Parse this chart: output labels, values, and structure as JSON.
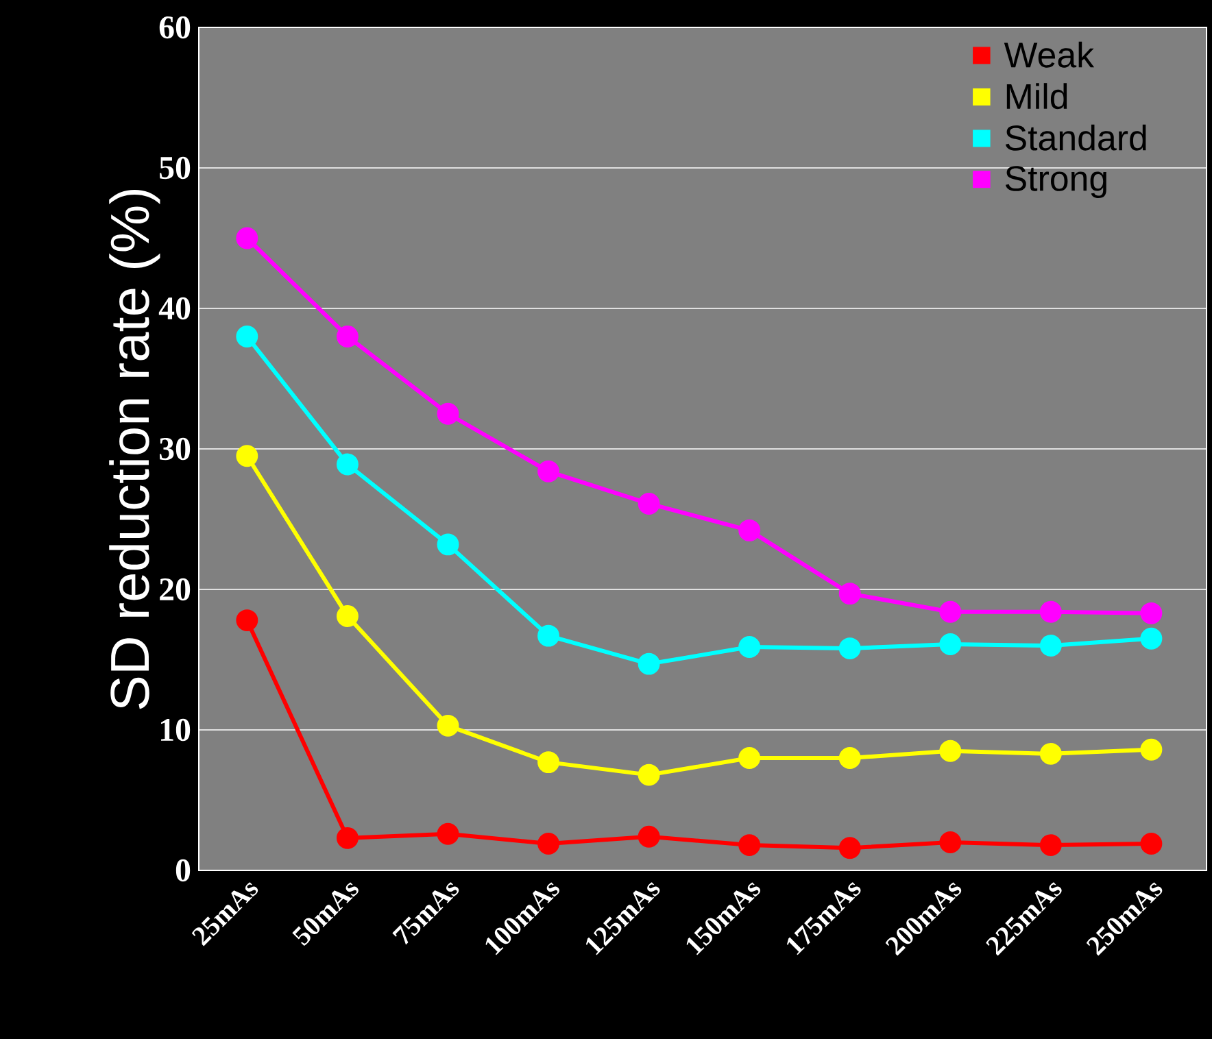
{
  "chart_data": {
    "type": "line",
    "ylabel": "SD reduction rate (%)",
    "categories": [
      "25mAs",
      "50mAs",
      "75mAs",
      "100mAs",
      "125mAs",
      "150mAs",
      "175mAs",
      "200mAs",
      "225mAs",
      "250mAs"
    ],
    "series": [
      {
        "name": "Weak",
        "color": "#ff0000",
        "values": [
          17.8,
          2.3,
          2.6,
          1.9,
          2.4,
          1.8,
          1.6,
          2.0,
          1.8,
          1.9
        ]
      },
      {
        "name": "Mild",
        "color": "#ffff00",
        "values": [
          29.5,
          18.1,
          10.3,
          7.7,
          6.8,
          8.0,
          8.0,
          8.5,
          8.3,
          8.6
        ]
      },
      {
        "name": "Standard",
        "color": "#00ffff",
        "values": [
          38.0,
          28.9,
          23.2,
          16.7,
          14.7,
          15.9,
          15.8,
          16.1,
          16.0,
          16.5
        ]
      },
      {
        "name": "Strong",
        "color": "#ff00ff",
        "values": [
          45.0,
          38.0,
          32.5,
          28.4,
          26.1,
          24.2,
          19.7,
          18.4,
          18.4,
          18.3
        ]
      }
    ],
    "ylim": [
      0,
      60
    ],
    "yticks": [
      0,
      10,
      20,
      30,
      40,
      50,
      60
    ],
    "grid": "y",
    "legend": "top right",
    "marker": "circle",
    "line_style": "solid"
  }
}
